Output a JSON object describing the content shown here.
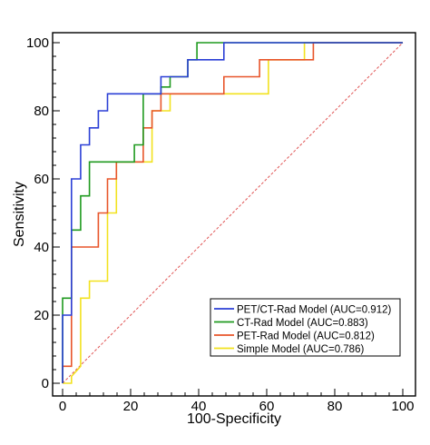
{
  "chart_data": {
    "type": "line",
    "title": "",
    "xlabel": "100-Specificity",
    "ylabel": "Sensitivity",
    "xlim": [
      0,
      100
    ],
    "ylim": [
      0,
      100
    ],
    "x_ticks": [
      0,
      20,
      40,
      60,
      80,
      100
    ],
    "y_ticks": [
      0,
      20,
      40,
      60,
      80,
      100
    ],
    "grid": false,
    "legend_position": "bottom-right",
    "reference_line": {
      "x": [
        0,
        100
      ],
      "y": [
        0,
        100
      ],
      "style": "dashed",
      "color": "#e05555"
    },
    "series": [
      {
        "name": "PET/CT-Rad Model (AUC=0.912)",
        "color": "#2b3fd6",
        "x": [
          0,
          0,
          2.6,
          2.6,
          2.6,
          5.3,
          5.3,
          7.9,
          7.9,
          10.5,
          10.5,
          13.2,
          13.2,
          28.9,
          28.9,
          36.8,
          36.8,
          47.4,
          47.4,
          100
        ],
        "y": [
          0,
          20,
          20,
          45,
          60,
          60,
          70,
          70,
          75,
          75,
          80,
          80,
          85,
          85,
          90,
          90,
          95,
          95,
          100,
          100
        ]
      },
      {
        "name": "CT-Rad Model (AUC=0.883)",
        "color": "#1f9a1f",
        "x": [
          0,
          0,
          2.6,
          2.6,
          5.3,
          5.3,
          7.9,
          7.9,
          21.1,
          21.1,
          23.7,
          23.7,
          28.9,
          28.9,
          31.6,
          31.6,
          36.8,
          36.8,
          39.5,
          39.5,
          73.7,
          100
        ],
        "y": [
          0,
          25,
          25,
          45,
          45,
          55,
          55,
          65,
          65,
          70,
          70,
          85,
          85,
          87,
          87,
          90,
          90,
          95,
          95,
          100,
          100,
          100
        ]
      },
      {
        "name": "PET-Rad Model (AUC=0.812)",
        "color": "#e8552a",
        "x": [
          0,
          0,
          2.6,
          2.6,
          10.5,
          10.5,
          13.2,
          13.2,
          15.8,
          15.8,
          23.7,
          23.7,
          26.3,
          26.3,
          28.9,
          28.9,
          47.4,
          47.4,
          57.9,
          57.9,
          73.7,
          73.7,
          100
        ],
        "y": [
          0,
          5,
          5,
          40,
          40,
          50,
          50,
          60,
          60,
          65,
          65,
          75,
          75,
          80,
          80,
          85,
          85,
          90,
          90,
          95,
          95,
          100,
          100
        ]
      },
      {
        "name": "Simple Model (AUC=0.786)",
        "color": "#f2e21e",
        "x": [
          0,
          2.6,
          2.6,
          5.3,
          5.3,
          7.9,
          7.9,
          13.2,
          13.2,
          15.8,
          15.8,
          26.3,
          26.3,
          31.6,
          31.6,
          60.5,
          60.5,
          71.1,
          71.1,
          100
        ],
        "y": [
          0,
          0,
          2,
          5,
          25,
          25,
          30,
          30,
          50,
          50,
          65,
          65,
          80,
          80,
          85,
          85,
          95,
          95,
          100,
          100
        ]
      }
    ]
  }
}
